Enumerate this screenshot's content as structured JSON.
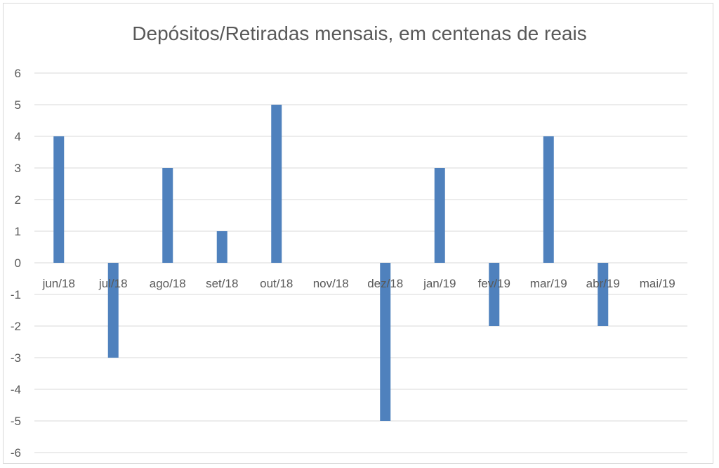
{
  "chart_data": {
    "type": "bar",
    "title": "Depósitos/Retiradas mensais, em centenas de reais",
    "xlabel": "",
    "ylabel": "",
    "categories": [
      "jun/18",
      "jul/18",
      "ago/18",
      "set/18",
      "out/18",
      "nov/18",
      "dez/18",
      "jan/19",
      "fev/19",
      "mar/19",
      "abr/19",
      "mai/19"
    ],
    "values": [
      4,
      -3,
      3,
      1,
      5,
      0,
      -5,
      3,
      -2,
      4,
      -2,
      0
    ],
    "ylim": [
      -6,
      6
    ],
    "yticks": [
      "6",
      "5",
      "4",
      "3",
      "2",
      "1",
      "0",
      "-1",
      "-2",
      "-3",
      "-4",
      "-5",
      "-6"
    ],
    "grid": true,
    "legend": "none",
    "bar_color": "#4f81bd",
    "grid_color": "#d9d9d9",
    "text_color": "#595959"
  }
}
